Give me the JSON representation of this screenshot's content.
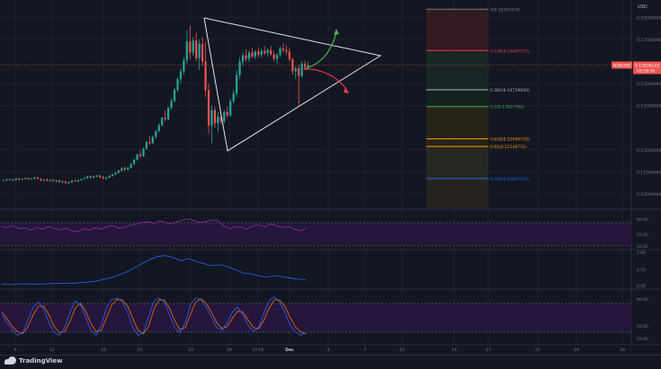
{
  "chart_data": {
    "type": "candlestick",
    "price_axis": {
      "currency": "USD",
      "ticks": [
        "0.18000000",
        "0.17000000",
        "0.15000000",
        "0.14000000",
        "0.12000000",
        "0.11000000",
        "0.10000000"
      ],
      "tick_values": [
        0.18,
        0.17,
        0.15,
        0.14,
        0.12,
        0.11,
        0.1
      ],
      "ylim": [
        0.0935,
        0.1846
      ]
    },
    "current_price": {
      "label": "NOKUSD",
      "value": "0.15836125",
      "countdown": "03:29:34"
    },
    "x_axis": {
      "ticks": [
        "9",
        "12",
        "16",
        "19",
        "23",
        "26",
        "27:00",
        "Dec",
        "4",
        "7",
        "10",
        "14",
        "17",
        "21",
        "24",
        "28"
      ]
    },
    "candles": [
      [
        0.106,
        0.1065,
        0.1055,
        0.1062
      ],
      [
        0.1062,
        0.107,
        0.1058,
        0.1066
      ],
      [
        0.1066,
        0.107,
        0.106,
        0.1063
      ],
      [
        0.1063,
        0.1068,
        0.1058,
        0.1064
      ],
      [
        0.1064,
        0.1072,
        0.106,
        0.107
      ],
      [
        0.107,
        0.1073,
        0.1062,
        0.1065
      ],
      [
        0.1065,
        0.107,
        0.106,
        0.1068
      ],
      [
        0.1068,
        0.1075,
        0.1064,
        0.1072
      ],
      [
        0.1072,
        0.1074,
        0.1064,
        0.1066
      ],
      [
        0.1066,
        0.1072,
        0.1062,
        0.107
      ],
      [
        0.107,
        0.1078,
        0.1066,
        0.1075
      ],
      [
        0.1075,
        0.1076,
        0.1066,
        0.1068
      ],
      [
        0.1068,
        0.1072,
        0.1058,
        0.1062
      ],
      [
        0.1062,
        0.1068,
        0.1056,
        0.1065
      ],
      [
        0.1065,
        0.107,
        0.1058,
        0.106
      ],
      [
        0.106,
        0.1066,
        0.1055,
        0.1063
      ],
      [
        0.1063,
        0.1068,
        0.1055,
        0.1058
      ],
      [
        0.1058,
        0.1064,
        0.105,
        0.1061
      ],
      [
        0.1061,
        0.1064,
        0.1052,
        0.1054
      ],
      [
        0.1054,
        0.106,
        0.1048,
        0.1056
      ],
      [
        0.1056,
        0.1058,
        0.1046,
        0.105
      ],
      [
        0.105,
        0.1056,
        0.1045,
        0.1053
      ],
      [
        0.1053,
        0.1062,
        0.105,
        0.106
      ],
      [
        0.106,
        0.1066,
        0.1055,
        0.1058
      ],
      [
        0.1058,
        0.1065,
        0.1052,
        0.1063
      ],
      [
        0.1063,
        0.107,
        0.106,
        0.1068
      ],
      [
        0.1068,
        0.1075,
        0.1064,
        0.1072
      ],
      [
        0.1072,
        0.1082,
        0.1068,
        0.108
      ],
      [
        0.108,
        0.1084,
        0.107,
        0.1074
      ],
      [
        0.1074,
        0.1082,
        0.107,
        0.1079
      ],
      [
        0.1079,
        0.1086,
        0.1075,
        0.1083
      ],
      [
        0.1083,
        0.1088,
        0.1072,
        0.1076
      ],
      [
        0.1076,
        0.1082,
        0.1066,
        0.107
      ],
      [
        0.107,
        0.1078,
        0.1065,
        0.1074
      ],
      [
        0.1074,
        0.1084,
        0.107,
        0.1081
      ],
      [
        0.1081,
        0.1092,
        0.1078,
        0.1089
      ],
      [
        0.1089,
        0.11,
        0.1085,
        0.1096
      ],
      [
        0.1096,
        0.111,
        0.1092,
        0.1106
      ],
      [
        0.1106,
        0.112,
        0.11,
        0.1116
      ],
      [
        0.1116,
        0.1126,
        0.1105,
        0.111
      ],
      [
        0.111,
        0.1122,
        0.1106,
        0.1119
      ],
      [
        0.1119,
        0.114,
        0.1116,
        0.1136
      ],
      [
        0.1136,
        0.116,
        0.113,
        0.1155
      ],
      [
        0.1155,
        0.1182,
        0.115,
        0.1178
      ],
      [
        0.1178,
        0.1196,
        0.1166,
        0.1172
      ],
      [
        0.1172,
        0.121,
        0.1168,
        0.1205
      ],
      [
        0.1205,
        0.124,
        0.12,
        0.1235
      ],
      [
        0.1235,
        0.1262,
        0.1222,
        0.123
      ],
      [
        0.123,
        0.1265,
        0.1225,
        0.1258
      ],
      [
        0.1258,
        0.129,
        0.125,
        0.1285
      ],
      [
        0.1285,
        0.132,
        0.1278,
        0.1312
      ],
      [
        0.1312,
        0.135,
        0.1305,
        0.1345
      ],
      [
        0.1345,
        0.1378,
        0.133,
        0.1338
      ],
      [
        0.1338,
        0.1395,
        0.1332,
        0.139
      ],
      [
        0.139,
        0.143,
        0.138,
        0.1422
      ],
      [
        0.1422,
        0.148,
        0.1415,
        0.1472
      ],
      [
        0.1472,
        0.153,
        0.146,
        0.152
      ],
      [
        0.152,
        0.157,
        0.15,
        0.1555
      ],
      [
        0.1555,
        0.162,
        0.154,
        0.1605
      ],
      [
        0.1605,
        0.174,
        0.159,
        0.169
      ],
      [
        0.169,
        0.176,
        0.161,
        0.164
      ],
      [
        0.164,
        0.171,
        0.1625,
        0.1695
      ],
      [
        0.1695,
        0.173,
        0.16,
        0.1615
      ],
      [
        0.1615,
        0.17,
        0.156,
        0.168
      ],
      [
        0.168,
        0.1712,
        0.158,
        0.16
      ],
      [
        0.16,
        0.169,
        0.144,
        0.147
      ],
      [
        0.147,
        0.15,
        0.127,
        0.131
      ],
      [
        0.131,
        0.14,
        0.123,
        0.138
      ],
      [
        0.138,
        0.1395,
        0.13,
        0.132
      ],
      [
        0.132,
        0.137,
        0.128,
        0.135
      ],
      [
        0.135,
        0.1365,
        0.1315,
        0.133
      ],
      [
        0.133,
        0.138,
        0.132,
        0.1372
      ],
      [
        0.1372,
        0.1395,
        0.1345,
        0.1355
      ],
      [
        0.1355,
        0.143,
        0.135,
        0.142
      ],
      [
        0.142,
        0.147,
        0.141,
        0.1455
      ],
      [
        0.1455,
        0.156,
        0.144,
        0.154
      ],
      [
        0.154,
        0.162,
        0.152,
        0.16
      ],
      [
        0.16,
        0.164,
        0.158,
        0.1628
      ],
      [
        0.1628,
        0.1655,
        0.16,
        0.1612
      ],
      [
        0.1612,
        0.1648,
        0.1598,
        0.164
      ],
      [
        0.164,
        0.166,
        0.1615,
        0.1622
      ],
      [
        0.1622,
        0.1652,
        0.161,
        0.1645
      ],
      [
        0.1645,
        0.1665,
        0.162,
        0.163
      ],
      [
        0.163,
        0.1658,
        0.1618,
        0.1648
      ],
      [
        0.1648,
        0.167,
        0.163,
        0.1638
      ],
      [
        0.1638,
        0.166,
        0.162,
        0.1652
      ],
      [
        0.1652,
        0.1672,
        0.1625,
        0.1632
      ],
      [
        0.1632,
        0.165,
        0.16,
        0.1612
      ],
      [
        0.1612,
        0.164,
        0.159,
        0.163
      ],
      [
        0.163,
        0.1668,
        0.162,
        0.166
      ],
      [
        0.166,
        0.1682,
        0.164,
        0.1652
      ],
      [
        0.1652,
        0.1672,
        0.163,
        0.1645
      ],
      [
        0.1645,
        0.166,
        0.16,
        0.161
      ],
      [
        0.161,
        0.1618,
        0.154,
        0.1555
      ],
      [
        0.1555,
        0.158,
        0.152,
        0.157
      ],
      [
        0.157,
        0.1585,
        0.14,
        0.1535
      ],
      [
        0.1535,
        0.16,
        0.1525,
        0.159
      ],
      [
        0.159,
        0.1605,
        0.156,
        0.1575
      ],
      [
        0.1575,
        0.16,
        0.1565,
        0.1584
      ]
    ],
    "pattern": {
      "type": "symmetrical triangle"
    },
    "fibonacci": {
      "levels": [
        {
          "label": "0(0.18367874)",
          "value": 0.18367874,
          "color": "#787b86"
        },
        {
          "label": "0.236(0.16497537)",
          "value": 0.16497537,
          "color": "#f23645"
        },
        {
          "label": "0.382(0.14719830)",
          "value": 0.1471983,
          "color": "#b2b5be"
        },
        {
          "label": "0.5(0.13957760)",
          "value": 0.1395776,
          "color": "#4caf50"
        },
        {
          "label": "0.618(0.12496710)",
          "value": 0.1249671,
          "color": "#ff9800"
        },
        {
          "label": "0.65(0.12148731)",
          "value": 0.12148731,
          "color": "#ff9800"
        },
        {
          "label": "0.786(0.10697527)",
          "value": 0.10697527,
          "color": "#2962ff"
        }
      ]
    },
    "projections": [
      {
        "direction": "up",
        "color": "#4caf50"
      },
      {
        "direction": "down",
        "color": "#f23645"
      }
    ],
    "indicators": [
      {
        "name": "rsi",
        "ticks": [
          "80.00",
          "50.00",
          "20.00"
        ],
        "color": "#9c27b0",
        "values": [
          60,
          58,
          62,
          55,
          57,
          52,
          58,
          54,
          60,
          56,
          52,
          57,
          50,
          48,
          55,
          52,
          58,
          54,
          60,
          62,
          56,
          58,
          64,
          66,
          70,
          72,
          68,
          74,
          70,
          66,
          72,
          76,
          78,
          74,
          70,
          72,
          76,
          74,
          62,
          55,
          60,
          58,
          54,
          62,
          64,
          60,
          66,
          62,
          58,
          60,
          54,
          50,
          56
        ]
      },
      {
        "name": "atr",
        "ticks": [
          "7.00",
          "4.55",
          "0.45"
        ],
        "color": "#2962ff",
        "values": [
          0.6,
          0.55,
          0.6,
          0.7,
          0.65,
          0.6,
          0.7,
          0.75,
          0.8,
          0.75,
          0.9,
          1.0,
          1.2,
          1.5,
          1.9,
          2.4,
          3.0,
          3.8,
          4.6,
          5.4,
          6.0,
          6.2,
          5.8,
          5.2,
          5.6,
          5.0,
          4.6,
          4.2,
          4.4,
          4.0,
          3.4,
          2.8,
          2.6,
          2.2,
          2.0,
          2.3,
          2.1,
          1.8,
          1.6,
          1.5
        ]
      },
      {
        "name": "stoch",
        "ticks": [
          "80.00",
          "50.00",
          "20.00"
        ],
        "k_color": "#2962ff",
        "d_color": "#ff6d00",
        "k": [
          55,
          40,
          25,
          15,
          20,
          45,
          70,
          80,
          65,
          40,
          20,
          15,
          30,
          60,
          82,
          75,
          50,
          25,
          15,
          35,
          70,
          85,
          88,
          80,
          60,
          30,
          15,
          20,
          50,
          82,
          88,
          80,
          55,
          30,
          20,
          40,
          75,
          88,
          85,
          70,
          50,
          30,
          25,
          40,
          60,
          70,
          55,
          35,
          22,
          30,
          58,
          82,
          90,
          80,
          60,
          35,
          22,
          15,
          20
        ],
        "d": [
          60,
          48,
          32,
          22,
          18,
          32,
          55,
          72,
          72,
          55,
          32,
          20,
          22,
          42,
          68,
          78,
          62,
          38,
          22,
          25,
          50,
          75,
          85,
          84,
          72,
          48,
          25,
          18,
          32,
          65,
          84,
          84,
          68,
          44,
          26,
          30,
          56,
          80,
          86,
          78,
          60,
          40,
          28,
          32,
          48,
          62,
          60,
          45,
          30,
          28,
          44,
          68,
          84,
          84,
          72,
          50,
          32,
          22,
          18
        ]
      }
    ]
  }
}
